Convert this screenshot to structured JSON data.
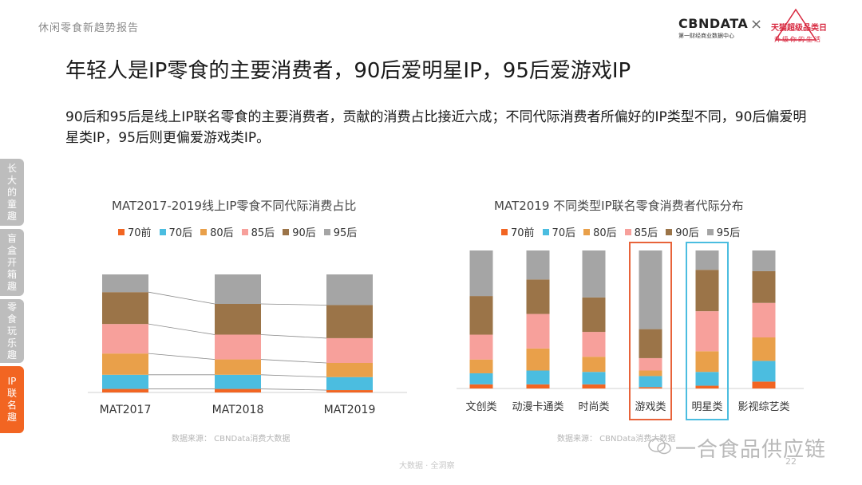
{
  "header": {
    "report_title": "休闲零食新趋势报告"
  },
  "logos": {
    "cbn_main": "CBNDATA",
    "cbn_sub": "第一财经商业数据中心",
    "tmall_main": "天猫超级品类日",
    "tmall_sub": "升级你的生活"
  },
  "title": "年轻人是IP零食的主要消费者，90后爱明星IP，95后爱游戏IP",
  "summary": "90后和95后是线上IP联名零食的主要消费者，贡献的消费占比接近六成；不同代际消费者所偏好的IP类型不同，90后偏爱明星类IP，95后则更偏爱游戏类IP。",
  "side_tabs": [
    {
      "label": "长大的童趣",
      "active": false
    },
    {
      "label": "盲盒开箱趣",
      "active": false
    },
    {
      "label": "零食玩乐趣",
      "active": false
    },
    {
      "label": "IP联名趣",
      "active": true
    }
  ],
  "colors": {
    "70前": "#f26522",
    "70后": "#4bbde0",
    "80后": "#e9a04a",
    "85后": "#f7a09b",
    "90后": "#9b7448",
    "95后": "#a5a5a5",
    "accent": "#f26522",
    "highlight_game": "#e8633a",
    "highlight_star": "#4bbde0"
  },
  "chart_data": [
    {
      "type": "bar",
      "stacked": "100%",
      "title": "MAT2017-2019线上IP零食不同代际消费占比",
      "categories": [
        "MAT2017",
        "MAT2018",
        "MAT2019"
      ],
      "legend_order": [
        "70前",
        "70后",
        "80后",
        "85后",
        "90后",
        "95后"
      ],
      "series": [
        {
          "name": "70前",
          "values": [
            3,
            3,
            2
          ]
        },
        {
          "name": "70后",
          "values": [
            12,
            12,
            11
          ]
        },
        {
          "name": "80后",
          "values": [
            18,
            13,
            12
          ]
        },
        {
          "name": "85后",
          "values": [
            25,
            21,
            21
          ]
        },
        {
          "name": "90后",
          "values": [
            27,
            26,
            28
          ]
        },
        {
          "name": "95后",
          "values": [
            15,
            25,
            26
          ]
        }
      ],
      "connector_lines": true,
      "source": "数据来源： CBNData消费大数据"
    },
    {
      "type": "bar",
      "stacked": "100%",
      "title": "MAT2019 不同类型IP联名零食消费者代际分布",
      "categories": [
        "文创类",
        "动漫卡通类",
        "时尚类",
        "游戏类",
        "明星类",
        "影视综艺类"
      ],
      "legend_order": [
        "70前",
        "70后",
        "80后",
        "85后",
        "90后",
        "95后"
      ],
      "series": [
        {
          "name": "70前",
          "values": [
            3,
            3,
            3,
            1,
            2,
            5
          ]
        },
        {
          "name": "70后",
          "values": [
            8,
            10,
            9,
            8,
            10,
            15
          ]
        },
        {
          "name": "80后",
          "values": [
            10,
            16,
            11,
            4,
            15,
            17
          ]
        },
        {
          "name": "85后",
          "values": [
            18,
            25,
            18,
            9,
            29,
            25
          ]
        },
        {
          "name": "90后",
          "values": [
            28,
            25,
            25,
            21,
            30,
            23
          ]
        },
        {
          "name": "95后",
          "values": [
            33,
            21,
            34,
            57,
            14,
            15
          ]
        }
      ],
      "highlighted": [
        "游戏类",
        "明星类"
      ],
      "source": "数据来源： CBNData消费大数据"
    }
  ],
  "footer": {
    "text": "大数据 · 全洞察",
    "page": "22"
  },
  "watermark": "一合食品供应链"
}
